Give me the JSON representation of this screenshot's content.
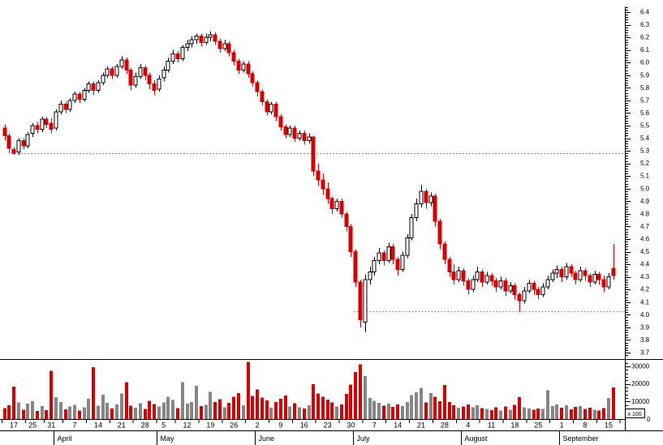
{
  "colors": {
    "background": "#ffffff",
    "candle_up_fill": "#ffffff",
    "candle_up_border": "#000000",
    "candle_down": "#d80000",
    "volume_up": "#858585",
    "volume_down": "#d80000",
    "support_line": "#8c8c8c",
    "axis_line": "#000000",
    "text": "#000000"
  },
  "chart_data": {
    "type": "candlestick",
    "legend_position": "none",
    "grid": "off",
    "price_axis": {
      "side": "right",
      "min": 3.7,
      "max": 6.4,
      "step": 0.1,
      "labels": [
        "6.4",
        "6.3",
        "6.2",
        "6.1",
        "6.0",
        "5.9",
        "5.8",
        "5.7",
        "5.6",
        "5.5",
        "5.4",
        "5.3",
        "5.2",
        "5.1",
        "5.0",
        "4.9",
        "4.8",
        "4.7",
        "4.6",
        "4.5",
        "4.4",
        "4.3",
        "4.2",
        "4.1",
        "4.0",
        "3.9",
        "3.8",
        "3.7"
      ]
    },
    "volume_axis": {
      "side": "right",
      "unit_label": "x 100",
      "zero_label": "0",
      "max": 33000,
      "ticks": [
        {
          "value": 30000,
          "label": "30000"
        },
        {
          "value": 20000,
          "label": "20000"
        },
        {
          "value": 10000,
          "label": "10000"
        }
      ]
    },
    "support_lines": [
      {
        "price": 5.28,
        "start_index": 2
      },
      {
        "price": 4.03,
        "start_index": 75
      }
    ],
    "x_axis": {
      "week_ticks": [
        {
          "i": 2,
          "label": "17"
        },
        {
          "i": 6,
          "label": "25"
        },
        {
          "i": 10,
          "label": "31"
        },
        {
          "i": 15,
          "label": "7"
        },
        {
          "i": 20,
          "label": "14"
        },
        {
          "i": 25,
          "label": "21"
        },
        {
          "i": 30,
          "label": "28"
        },
        {
          "i": 34,
          "label": "5"
        },
        {
          "i": 39,
          "label": "12"
        },
        {
          "i": 44,
          "label": "19"
        },
        {
          "i": 49,
          "label": "26"
        },
        {
          "i": 54,
          "label": "2"
        },
        {
          "i": 59,
          "label": "9"
        },
        {
          "i": 64,
          "label": "16"
        },
        {
          "i": 69,
          "label": "23"
        },
        {
          "i": 74,
          "label": "30"
        },
        {
          "i": 79,
          "label": "7"
        },
        {
          "i": 84,
          "label": "14"
        },
        {
          "i": 89,
          "label": "21"
        },
        {
          "i": 94,
          "label": "28"
        },
        {
          "i": 99,
          "label": "4"
        },
        {
          "i": 104,
          "label": "11"
        },
        {
          "i": 109,
          "label": "18"
        },
        {
          "i": 114,
          "label": "25"
        },
        {
          "i": 119,
          "label": "1"
        },
        {
          "i": 124,
          "label": "8"
        },
        {
          "i": 129,
          "label": "15"
        }
      ],
      "months": [
        {
          "label": "April",
          "start": 11
        },
        {
          "label": "May",
          "start": 33
        },
        {
          "label": "June",
          "start": 54
        },
        {
          "label": "July",
          "start": 75
        },
        {
          "label": "August",
          "start": 98
        },
        {
          "label": "September",
          "start": 119
        }
      ]
    },
    "candles": [
      [
        5.48,
        5.51,
        5.38,
        5.42,
        6200
      ],
      [
        5.42,
        5.44,
        5.28,
        5.32,
        7800
      ],
      [
        5.31,
        5.33,
        5.27,
        5.28,
        18500
      ],
      [
        5.29,
        5.4,
        5.27,
        5.38,
        9500
      ],
      [
        5.38,
        5.4,
        5.31,
        5.34,
        5200
      ],
      [
        5.34,
        5.45,
        5.32,
        5.43,
        8800
      ],
      [
        5.44,
        5.52,
        5.41,
        5.5,
        10200
      ],
      [
        5.5,
        5.53,
        5.44,
        5.47,
        4600
      ],
      [
        5.47,
        5.57,
        5.45,
        5.55,
        7400
      ],
      [
        5.55,
        5.57,
        5.48,
        5.51,
        5100
      ],
      [
        5.52,
        5.56,
        5.44,
        5.47,
        27500
      ],
      [
        5.48,
        5.63,
        5.46,
        5.61,
        12400
      ],
      [
        5.61,
        5.7,
        5.59,
        5.67,
        9800
      ],
      [
        5.67,
        5.69,
        5.6,
        5.63,
        5600
      ],
      [
        5.63,
        5.72,
        5.61,
        5.7,
        7200
      ],
      [
        5.7,
        5.77,
        5.68,
        5.75,
        8100
      ],
      [
        5.75,
        5.77,
        5.68,
        5.71,
        4900
      ],
      [
        5.71,
        5.8,
        5.69,
        5.78,
        6800
      ],
      [
        5.78,
        5.85,
        5.76,
        5.83,
        11500
      ],
      [
        5.83,
        5.85,
        5.74,
        5.78,
        29500
      ],
      [
        5.78,
        5.86,
        5.76,
        5.84,
        7600
      ],
      [
        5.84,
        5.92,
        5.82,
        5.9,
        13800
      ],
      [
        5.9,
        5.97,
        5.88,
        5.95,
        9200
      ],
      [
        5.95,
        5.97,
        5.87,
        5.9,
        6100
      ],
      [
        5.9,
        5.99,
        5.88,
        5.97,
        8400
      ],
      [
        5.97,
        6.05,
        5.95,
        6.02,
        14600
      ],
      [
        6.02,
        6.04,
        5.91,
        5.94,
        21000
      ],
      [
        5.94,
        5.96,
        5.78,
        5.82,
        7700
      ],
      [
        5.82,
        5.92,
        5.8,
        5.89,
        6500
      ],
      [
        5.89,
        5.99,
        5.87,
        5.96,
        9100
      ],
      [
        5.96,
        5.98,
        5.86,
        5.9,
        5800
      ],
      [
        5.9,
        5.92,
        5.79,
        5.83,
        10300
      ],
      [
        5.83,
        5.86,
        5.74,
        5.78,
        8600
      ],
      [
        5.79,
        5.9,
        5.77,
        5.87,
        7200
      ],
      [
        5.88,
        5.97,
        5.85,
        5.94,
        9400
      ],
      [
        5.94,
        6.04,
        5.92,
        6.01,
        12700
      ],
      [
        6.01,
        6.1,
        5.99,
        6.07,
        10800
      ],
      [
        6.07,
        6.09,
        6.0,
        6.03,
        6200
      ],
      [
        6.03,
        6.14,
        6.01,
        6.12,
        21000
      ],
      [
        6.12,
        6.18,
        6.09,
        6.15,
        8800
      ],
      [
        6.15,
        6.21,
        6.12,
        6.18,
        9600
      ],
      [
        6.18,
        6.23,
        6.15,
        6.21,
        19000
      ],
      [
        6.21,
        6.23,
        6.13,
        6.16,
        7400
      ],
      [
        6.16,
        6.23,
        6.14,
        6.2,
        8100
      ],
      [
        6.2,
        6.25,
        6.17,
        6.22,
        15400
      ],
      [
        6.22,
        6.24,
        6.14,
        6.17,
        9700
      ],
      [
        6.17,
        6.19,
        6.08,
        6.11,
        11200
      ],
      [
        6.11,
        6.18,
        6.09,
        6.15,
        6800
      ],
      [
        6.15,
        6.17,
        6.05,
        6.08,
        9300
      ],
      [
        6.08,
        6.1,
        5.98,
        6.01,
        12600
      ],
      [
        6.01,
        6.03,
        5.91,
        5.94,
        14800
      ],
      [
        5.94,
        6.01,
        5.92,
        5.99,
        7900
      ],
      [
        5.99,
        6.01,
        5.88,
        5.91,
        32500
      ],
      [
        5.91,
        5.93,
        5.81,
        5.84,
        13100
      ],
      [
        5.84,
        5.86,
        5.73,
        5.77,
        16800
      ],
      [
        5.77,
        5.79,
        5.66,
        5.69,
        12300
      ],
      [
        5.69,
        5.71,
        5.58,
        5.61,
        10700
      ],
      [
        5.61,
        5.69,
        5.59,
        5.67,
        6400
      ],
      [
        5.67,
        5.69,
        5.54,
        5.57,
        9800
      ],
      [
        5.57,
        5.59,
        5.46,
        5.49,
        11600
      ],
      [
        5.49,
        5.51,
        5.4,
        5.43,
        13400
      ],
      [
        5.43,
        5.5,
        5.41,
        5.48,
        7100
      ],
      [
        5.48,
        5.5,
        5.37,
        5.4,
        8900
      ],
      [
        5.4,
        5.46,
        5.38,
        5.44,
        6600
      ],
      [
        5.44,
        5.46,
        5.35,
        5.38,
        5900
      ],
      [
        5.38,
        5.44,
        5.36,
        5.41,
        7800
      ],
      [
        5.41,
        5.42,
        5.1,
        5.14,
        19800
      ],
      [
        5.14,
        5.2,
        5.02,
        5.07,
        14500
      ],
      [
        5.07,
        5.12,
        4.95,
        5.0,
        12800
      ],
      [
        5.0,
        5.05,
        4.88,
        4.92,
        11000
      ],
      [
        4.92,
        4.94,
        4.8,
        4.84,
        9500
      ],
      [
        4.84,
        4.92,
        4.82,
        4.9,
        7200
      ],
      [
        4.9,
        4.92,
        4.77,
        4.8,
        8400
      ],
      [
        4.8,
        4.82,
        4.66,
        4.7,
        14200
      ],
      [
        4.7,
        4.72,
        4.46,
        4.5,
        19600
      ],
      [
        4.5,
        4.52,
        4.22,
        4.26,
        26800
      ],
      [
        4.26,
        4.28,
        3.9,
        3.96,
        31200
      ],
      [
        3.94,
        4.32,
        3.86,
        4.28,
        24500
      ],
      [
        4.28,
        4.38,
        4.24,
        4.34,
        12100
      ],
      [
        4.34,
        4.46,
        4.31,
        4.43,
        10400
      ],
      [
        4.43,
        4.53,
        4.4,
        4.49,
        9200
      ],
      [
        4.49,
        4.51,
        4.39,
        4.43,
        7600
      ],
      [
        4.43,
        4.57,
        4.41,
        4.54,
        8800
      ],
      [
        4.54,
        4.56,
        4.4,
        4.44,
        6900
      ],
      [
        4.44,
        4.46,
        4.31,
        4.36,
        8200
      ],
      [
        4.36,
        4.5,
        4.34,
        4.47,
        7400
      ],
      [
        4.47,
        4.64,
        4.45,
        4.61,
        9800
      ],
      [
        4.61,
        4.8,
        4.59,
        4.77,
        13600
      ],
      [
        4.77,
        4.92,
        4.74,
        4.88,
        15200
      ],
      [
        4.88,
        5.03,
        4.85,
        4.98,
        17800
      ],
      [
        4.98,
        5.0,
        4.84,
        4.89,
        9400
      ],
      [
        4.89,
        4.97,
        4.86,
        4.94,
        14800
      ],
      [
        4.94,
        4.96,
        4.7,
        4.74,
        12600
      ],
      [
        4.74,
        4.76,
        4.52,
        4.56,
        10200
      ],
      [
        4.56,
        4.58,
        4.4,
        4.44,
        19500
      ],
      [
        4.44,
        4.46,
        4.3,
        4.34,
        9600
      ],
      [
        4.34,
        4.4,
        4.24,
        4.28,
        7800
      ],
      [
        4.28,
        4.38,
        4.26,
        4.35,
        6400
      ],
      [
        4.35,
        4.37,
        4.23,
        4.27,
        7100
      ],
      [
        4.27,
        4.29,
        4.16,
        4.2,
        8300
      ],
      [
        4.2,
        4.31,
        4.18,
        4.28,
        6700
      ],
      [
        4.28,
        4.38,
        4.26,
        4.34,
        7900
      ],
      [
        4.34,
        4.36,
        4.22,
        4.26,
        6200
      ],
      [
        4.26,
        4.34,
        4.24,
        4.31,
        5800
      ],
      [
        4.31,
        4.33,
        4.23,
        4.27,
        5100
      ],
      [
        4.27,
        4.29,
        4.18,
        4.22,
        6600
      ],
      [
        4.22,
        4.3,
        4.2,
        4.27,
        4900
      ],
      [
        4.27,
        4.29,
        4.15,
        4.19,
        7200
      ],
      [
        4.19,
        4.26,
        4.17,
        4.23,
        5400
      ],
      [
        4.23,
        4.25,
        4.12,
        4.16,
        8100
      ],
      [
        4.16,
        4.18,
        4.02,
        4.11,
        12400
      ],
      [
        4.11,
        4.22,
        4.09,
        4.19,
        6800
      ],
      [
        4.19,
        4.28,
        4.17,
        4.25,
        5900
      ],
      [
        4.25,
        4.27,
        4.16,
        4.2,
        5200
      ],
      [
        4.2,
        4.22,
        4.12,
        4.16,
        6100
      ],
      [
        4.16,
        4.25,
        4.14,
        4.22,
        5700
      ],
      [
        4.22,
        4.31,
        4.2,
        4.28,
        16500
      ],
      [
        4.28,
        4.36,
        4.26,
        4.33,
        7500
      ],
      [
        4.33,
        4.39,
        4.29,
        4.36,
        8200
      ],
      [
        4.36,
        4.38,
        4.26,
        4.3,
        6400
      ],
      [
        4.3,
        4.41,
        4.28,
        4.38,
        7800
      ],
      [
        4.38,
        4.4,
        4.3,
        4.33,
        5600
      ],
      [
        4.33,
        4.35,
        4.24,
        4.28,
        6900
      ],
      [
        4.28,
        4.38,
        4.26,
        4.35,
        7300
      ],
      [
        4.35,
        4.37,
        4.27,
        4.31,
        5800
      ],
      [
        4.31,
        4.33,
        4.22,
        4.26,
        6500
      ],
      [
        4.26,
        4.35,
        4.24,
        4.32,
        5400
      ],
      [
        4.32,
        4.34,
        4.24,
        4.28,
        4800
      ],
      [
        4.28,
        4.31,
        4.18,
        4.22,
        6200
      ],
      [
        4.22,
        4.33,
        4.2,
        4.3,
        12000
      ],
      [
        4.37,
        4.56,
        4.28,
        4.31,
        18000
      ]
    ]
  }
}
